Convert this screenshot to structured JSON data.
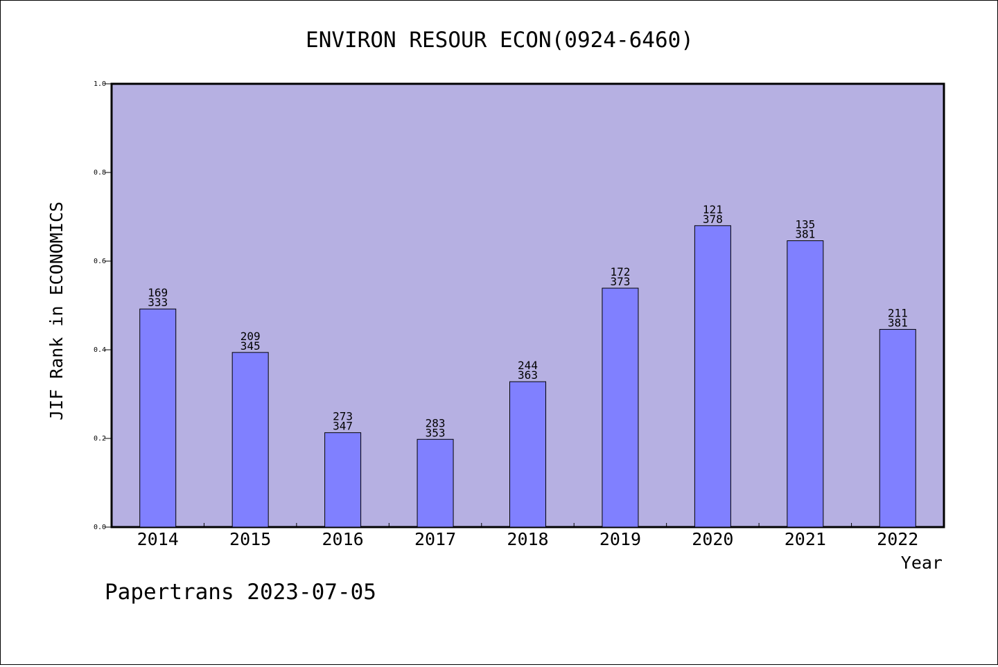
{
  "chart_data": {
    "type": "bar",
    "title": "ENVIRON RESOUR ECON(0924-6460)",
    "xlabel": "Year",
    "ylabel": "JIF Rank in ECONOMICS",
    "ylim": [
      0,
      1
    ],
    "yticks": [
      "0.0",
      "0.2",
      "0.4",
      "0.6",
      "0.8",
      "1.0"
    ],
    "categories": [
      "2014",
      "2015",
      "2016",
      "2017",
      "2018",
      "2019",
      "2020",
      "2021",
      "2022"
    ],
    "values": [
      0.492,
      0.394,
      0.213,
      0.198,
      0.328,
      0.539,
      0.68,
      0.646,
      0.446
    ],
    "labels_top": [
      "169",
      "209",
      "273",
      "283",
      "244",
      "172",
      "121",
      "135",
      "211"
    ],
    "labels_bottom": [
      "333",
      "345",
      "347",
      "353",
      "363",
      "373",
      "378",
      "381",
      "381"
    ],
    "grid": false,
    "colors": {
      "plot_background": "#b6b0e2",
      "bar_fill": "#8080ff",
      "bar_stroke": "#000000"
    }
  },
  "footer": {
    "text": "Papertrans 2023-07-05"
  }
}
